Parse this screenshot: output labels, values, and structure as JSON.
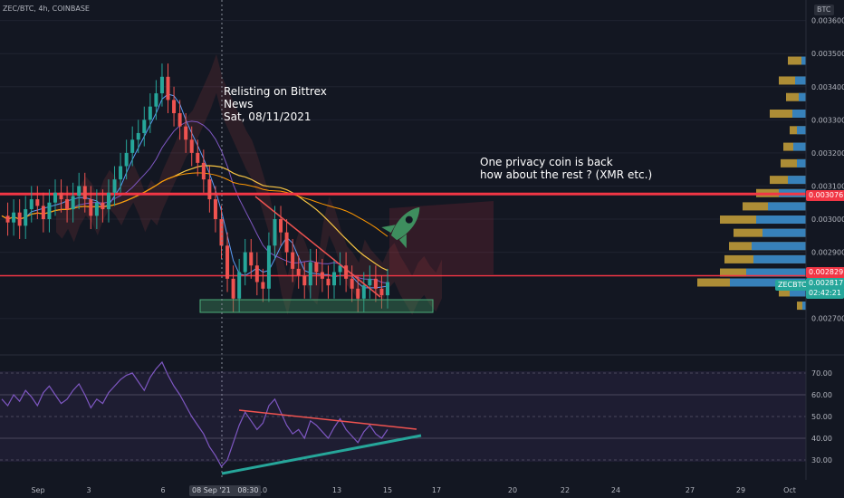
{
  "header": {
    "title": "ZEC/BTC, 4h, COINBASE",
    "currency": "BTC"
  },
  "colors": {
    "bg": "#131722",
    "up": "#26a69a",
    "down": "#ef5350",
    "rsi": "#7e57c2",
    "hline": "#f23645",
    "box": "#3e8e5e",
    "vp_up": "#2a7fc9",
    "vp_down": "#c9a23a"
  },
  "annotations": {
    "bittrex": [
      "Relisting on Bittrex",
      "News",
      "Sat, 08/11/2021"
    ],
    "privacy": [
      "One privacy coin is back",
      "how about the rest ? (XMR etc.)"
    ]
  },
  "price_labels": {
    "upper": "0.003076",
    "lower": "0.002829",
    "current": "0.002817",
    "symbol": "ZECBTC",
    "countdown": "02:42:21"
  },
  "xaxis": {
    "highlight": "08 Sep '21   08:30"
  },
  "chart_data": [
    {
      "type": "line",
      "title": "ZEC/BTC, 4h, COINBASE",
      "y_unit": "BTC",
      "yticks": [
        "0.003600",
        "0.003500",
        "0.003400",
        "0.003300",
        "0.003200",
        "0.003100",
        "0.003000",
        "0.002900",
        "0.002700"
      ],
      "ylim": [
        0.00265,
        0.00364
      ],
      "xticks": [
        "Sep",
        "3",
        "6",
        "10",
        "13",
        "15",
        "17",
        "20",
        "22",
        "24",
        "27",
        "29",
        "Oct"
      ],
      "horizontal_levels": [
        0.003076,
        0.002829
      ],
      "series": [
        {
          "values": [
            0.00301,
            0.00299,
            0.00302,
            0.00298,
            0.00303,
            0.00306,
            0.00304,
            0.003,
            0.00305,
            0.00308,
            0.00306,
            0.00303,
            0.00307,
            0.0031,
            0.00306,
            0.00301,
            0.00305,
            0.00303,
            0.00308,
            0.00312,
            0.00316,
            0.0032,
            0.00324,
            0.00326,
            0.0033,
            0.00334,
            0.00338,
            0.00343,
            0.00336,
            0.00332,
            0.00328,
            0.00324,
            0.0032,
            0.00317,
            0.00312,
            0.00306,
            0.003,
            0.00292,
            0.00282,
            0.00276,
            0.00284,
            0.0029,
            0.00286,
            0.00281,
            0.00279,
            0.00292,
            0.003,
            0.00296,
            0.0029,
            0.00285,
            0.00283,
            0.0028,
            0.00287,
            0.00284,
            0.00282,
            0.0028,
            0.00284,
            0.00286,
            0.00282,
            0.00279,
            0.00276,
            0.0028,
            0.00282,
            0.00279,
            0.00277,
            0.00281
          ]
        }
      ]
    },
    {
      "type": "line",
      "yticks": [
        "70.00",
        "60.00",
        "50.00",
        "40.00",
        "30.00"
      ],
      "ylim": [
        25,
        75
      ],
      "series": [
        {
          "values": [
            58,
            55,
            60,
            57,
            62,
            59,
            55,
            61,
            64,
            60,
            56,
            58,
            62,
            65,
            60,
            54,
            58,
            56,
            61,
            64,
            67,
            69,
            70,
            66,
            62,
            68,
            72,
            75,
            69,
            64,
            60,
            55,
            50,
            46,
            42,
            36,
            32,
            27,
            30,
            38,
            46,
            52,
            48,
            44,
            47,
            55,
            58,
            52,
            46,
            42,
            44,
            40,
            48,
            46,
            43,
            40,
            45,
            49,
            44,
            41,
            38,
            43,
            46,
            42,
            40,
            44
          ]
        }
      ]
    }
  ]
}
